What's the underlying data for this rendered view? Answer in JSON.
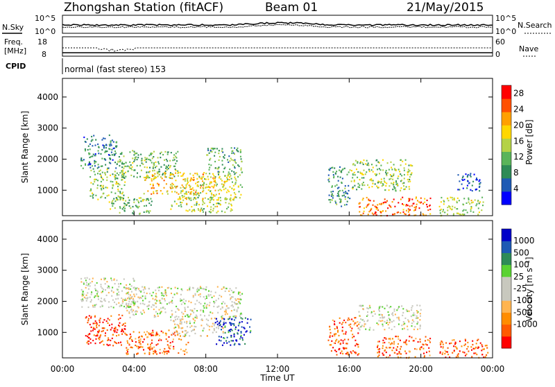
{
  "header": {
    "station": "Zhongshan Station (fitACF)",
    "beam": "Beam 01",
    "date": "21/May/2015"
  },
  "top_panels": {
    "nsky_label": "N.Sky",
    "nsearch_label": "N.Search",
    "nsky_ticks": [
      "10^5",
      "10^0"
    ],
    "nsearch_ticks": [
      "10^5",
      "10^0"
    ],
    "freq_label_line1": "Freq.",
    "freq_label_line2": "[MHz]",
    "freq_ticks": [
      "18",
      "8"
    ],
    "nave_label": "Nave",
    "nave_ticks": [
      "60",
      "0"
    ],
    "cpid_label": "CPID",
    "cpid_value": "normal (fast stereo) 153"
  },
  "chart_data": [
    {
      "type": "heatmap",
      "name": "power",
      "ylabel": "Slant Range [km]",
      "ylim": [
        180,
        4600
      ],
      "yticks": [
        1000,
        2000,
        3000,
        4000
      ],
      "xlim": [
        0,
        24
      ],
      "xticks": [
        "00:00",
        "04:00",
        "08:00",
        "12:00",
        "16:00",
        "20:00",
        "00:00"
      ],
      "colorbar": {
        "label": "Power [dB]",
        "ticks": [
          "28",
          "24",
          "20",
          "16",
          "12",
          "8",
          "4"
        ],
        "range": [
          0,
          30
        ],
        "colors": [
          "#0000ff",
          "#1e5ab4",
          "#2e8b57",
          "#5ab45a",
          "#b4d246",
          "#ffd700",
          "#ffa000",
          "#ff5000",
          "#ff0000"
        ]
      },
      "regions": [
        {
          "t0": 1.0,
          "t1": 3.0,
          "r0": 1700,
          "r1": 2800,
          "level": 0.25
        },
        {
          "t0": 1.5,
          "t1": 3.5,
          "r0": 700,
          "r1": 1700,
          "level": 0.45
        },
        {
          "t0": 3.0,
          "t1": 6.5,
          "r0": 1400,
          "r1": 2300,
          "level": 0.4
        },
        {
          "t0": 4.5,
          "t1": 8.5,
          "r0": 900,
          "r1": 1600,
          "level": 0.65
        },
        {
          "t0": 6.5,
          "t1": 10.0,
          "r0": 700,
          "r1": 1500,
          "level": 0.55
        },
        {
          "t0": 8.0,
          "t1": 10.0,
          "r0": 1500,
          "r1": 2400,
          "level": 0.35
        },
        {
          "t0": 2.5,
          "t1": 5.0,
          "r0": 250,
          "r1": 800,
          "level": 0.4
        },
        {
          "t0": 6.0,
          "t1": 9.5,
          "r0": 300,
          "r1": 800,
          "level": 0.5
        },
        {
          "t0": 14.8,
          "t1": 16.0,
          "r0": 500,
          "r1": 1800,
          "level": 0.3
        },
        {
          "t0": 16.0,
          "t1": 19.5,
          "r0": 1000,
          "r1": 2000,
          "level": 0.45
        },
        {
          "t0": 16.5,
          "t1": 20.5,
          "r0": 200,
          "r1": 800,
          "level": 0.8
        },
        {
          "t0": 21.0,
          "t1": 23.5,
          "r0": 200,
          "r1": 800,
          "level": 0.5
        },
        {
          "t0": 22.0,
          "t1": 23.3,
          "r0": 1000,
          "r1": 1600,
          "level": 0.15
        }
      ]
    },
    {
      "type": "heatmap",
      "name": "velocity",
      "ylabel": "Slant Range [km]",
      "ylim": [
        180,
        4600
      ],
      "yticks": [
        1000,
        2000,
        3000,
        4000
      ],
      "xlim": [
        0,
        24
      ],
      "xlabel": "Time UT",
      "xticks": [
        "00:00",
        "04:00",
        "08:00",
        "12:00",
        "16:00",
        "20:00",
        "00:00"
      ],
      "colorbar": {
        "label": "Velocity [m s⁻¹]",
        "ticks": [
          "1000",
          "500",
          "100",
          "25",
          "-25",
          "-100",
          "-500",
          "-1000"
        ],
        "colors": [
          "#ff0000",
          "#ff5a00",
          "#ff8c00",
          "#ffb450",
          "#c8c8be",
          "#c8c8be",
          "#5ad232",
          "#2e8b57",
          "#1e5ab4",
          "#0000c8"
        ]
      },
      "regions": [
        {
          "t0": 1.0,
          "t1": 4.0,
          "r0": 1800,
          "r1": 2800,
          "level": 0.5
        },
        {
          "t0": 3.5,
          "t1": 10.0,
          "r0": 1500,
          "r1": 2500,
          "level": 0.5
        },
        {
          "t0": 1.2,
          "t1": 3.5,
          "r0": 600,
          "r1": 1600,
          "level": 0.1
        },
        {
          "t0": 3.5,
          "t1": 7.0,
          "r0": 300,
          "r1": 1100,
          "level": 0.2
        },
        {
          "t0": 6.0,
          "t1": 9.0,
          "r0": 900,
          "r1": 1500,
          "level": 0.45
        },
        {
          "t0": 8.5,
          "t1": 10.5,
          "r0": 600,
          "r1": 1500,
          "level": 0.85
        },
        {
          "t0": 14.8,
          "t1": 16.5,
          "r0": 300,
          "r1": 1500,
          "level": 0.15
        },
        {
          "t0": 16.5,
          "t1": 20.0,
          "r0": 1100,
          "r1": 1900,
          "level": 0.5
        },
        {
          "t0": 17.5,
          "t1": 20.5,
          "r0": 200,
          "r1": 900,
          "level": 0.2
        },
        {
          "t0": 21.0,
          "t1": 23.7,
          "r0": 200,
          "r1": 800,
          "level": 0.15
        }
      ]
    }
  ]
}
